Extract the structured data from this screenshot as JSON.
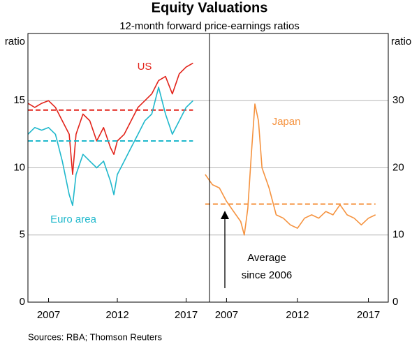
{
  "title": "Equity Valuations",
  "subtitle": "12-month forward price-earnings ratios",
  "source": "Sources: RBA; Thomson Reuters",
  "chart_data": [
    {
      "type": "line",
      "y_label": "ratio",
      "axis_side": "left",
      "xlim": [
        2005.5,
        2018.7
      ],
      "xticks": [
        2007,
        2012,
        2017
      ],
      "ylim": [
        0,
        20
      ],
      "yticks": [
        0,
        5,
        10,
        15
      ],
      "grid": true,
      "x": [
        2005.5,
        2006,
        2006.5,
        2007,
        2007.5,
        2008,
        2008.5,
        2008.75,
        2009,
        2009.5,
        2010,
        2010.5,
        2011,
        2011.5,
        2011.75,
        2012,
        2012.5,
        2013,
        2013.5,
        2014,
        2014.5,
        2015,
        2015.5,
        2016,
        2016.5,
        2017,
        2017.5
      ],
      "series": [
        {
          "name": "US",
          "color": "#e2231a",
          "average": 14.3,
          "values": [
            14.8,
            14.5,
            14.8,
            15.0,
            14.5,
            13.5,
            12.5,
            9.5,
            12.5,
            14,
            13.5,
            12,
            13,
            11.5,
            11,
            12,
            12.5,
            13.5,
            14.5,
            15,
            15.5,
            16.5,
            16.8,
            15.5,
            17,
            17.5,
            17.8
          ]
        },
        {
          "name": "Euro area",
          "color": "#1fb8cc",
          "average": 12.0,
          "values": [
            12.5,
            13,
            12.8,
            13,
            12.5,
            10.5,
            8,
            7.2,
            9.5,
            11,
            10.5,
            10,
            10.5,
            9,
            8,
            9.5,
            10.5,
            11.5,
            12.5,
            13.5,
            14,
            16,
            14,
            12.5,
            13.5,
            14.5,
            15
          ]
        }
      ]
    },
    {
      "type": "line",
      "y_label": "ratio",
      "axis_side": "right",
      "xlim": [
        2005.8,
        2018.4
      ],
      "xticks": [
        2007,
        2012,
        2017
      ],
      "ylim": [
        0,
        40
      ],
      "yticks": [
        0,
        10,
        20,
        30
      ],
      "grid": true,
      "x": [
        2005.5,
        2006,
        2006.5,
        2007,
        2007.5,
        2008,
        2008.25,
        2008.5,
        2008.75,
        2009,
        2009.25,
        2009.5,
        2010,
        2010.5,
        2011,
        2011.5,
        2012,
        2012.5,
        2013,
        2013.5,
        2014,
        2014.5,
        2015,
        2015.5,
        2016,
        2016.5,
        2017,
        2017.5
      ],
      "series": [
        {
          "name": "Japan",
          "color": "#f5923e",
          "average": 14.6,
          "values": [
            19,
            17.5,
            17,
            15,
            13.5,
            12,
            10,
            14,
            22,
            29.5,
            27,
            20,
            17,
            13,
            12.5,
            11.5,
            11,
            12.5,
            13,
            12.5,
            13.5,
            13,
            14.5,
            13,
            12.5,
            11.5,
            12.5,
            13
          ]
        }
      ],
      "annotation": [
        "Average",
        "since 2006"
      ]
    }
  ]
}
